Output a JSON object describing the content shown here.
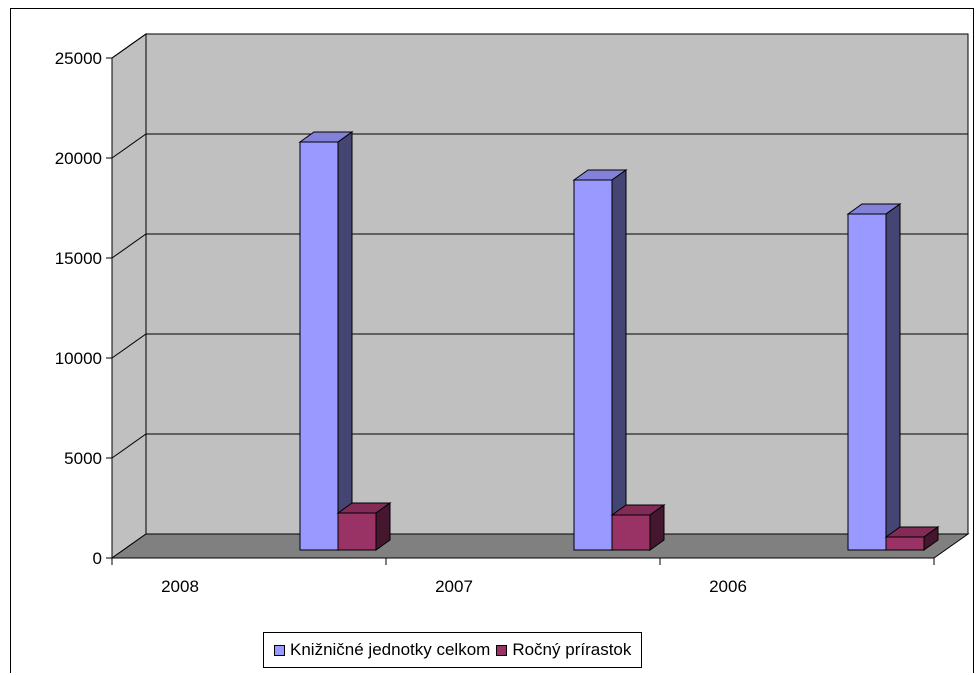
{
  "chart_data": {
    "type": "bar",
    "title": "",
    "xlabel": "",
    "ylabel": "",
    "categories": [
      "2008",
      "2007",
      "2006"
    ],
    "series": [
      {
        "name": "Knižničné jednotky celkom",
        "values": [
          20400,
          18500,
          16800
        ],
        "color": "#9999ff"
      },
      {
        "name": "Ročný prírastok",
        "values": [
          1850,
          1750,
          650
        ],
        "color": "#993366"
      }
    ],
    "ylim": [
      0,
      25000
    ],
    "yticks": [
      "0",
      "5000",
      "10000",
      "15000",
      "20000",
      "25000"
    ],
    "grid": true,
    "legend_position": "bottom",
    "three_d": true,
    "wall_color": "#c0c0c0",
    "floor_color": "#808080"
  }
}
